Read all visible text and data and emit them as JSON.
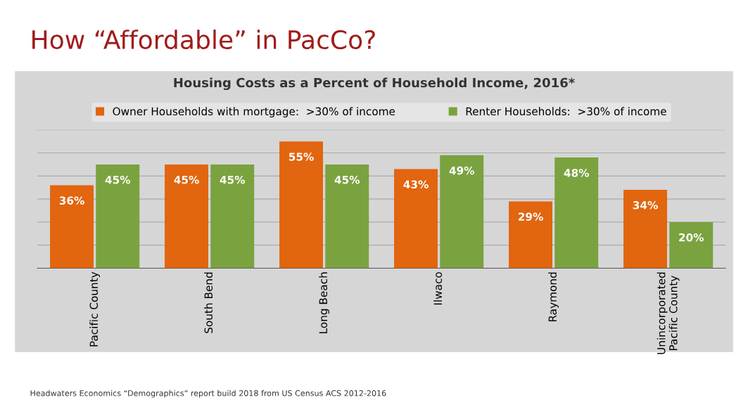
{
  "chart_data": {
    "type": "bar",
    "title": "How “Affordable” in PacCo?",
    "subtitle": "Housing Costs as a Percent of Household Income, 2016*",
    "categories": [
      "Pacific County",
      "South Bend",
      "Long Beach",
      "Ilwaco",
      "Raymond",
      "Unincorporated\nPacific County"
    ],
    "series": [
      {
        "name": "Owner Households with mortgage:  >30% of income",
        "color": "#e2650f",
        "values": [
          36,
          45,
          55,
          43,
          29,
          34
        ],
        "value_labels": [
          "36%",
          "45%",
          "55%",
          "43%",
          "29%",
          "34%"
        ]
      },
      {
        "name": "Renter Households:  >30% of income",
        "color": "#7aa23f",
        "values": [
          45,
          45,
          45,
          49,
          48,
          20
        ],
        "value_labels": [
          "45%",
          "45%",
          "45%",
          "49%",
          "48%",
          "20%"
        ]
      }
    ],
    "ylim": [
      0,
      60
    ],
    "yticks": [
      {
        "value": 0,
        "label": null
      },
      {
        "value": 10,
        "label": null
      },
      {
        "value": 20,
        "label": null
      },
      {
        "value": 30,
        "label": null
      },
      {
        "value": 40,
        "label": null
      },
      {
        "value": 50,
        "label": null
      },
      {
        "value": 60,
        "label": null
      }
    ],
    "tick_labels": "x",
    "grid": "y",
    "legend": "top",
    "annotations": [
      "Headwaters Economics “Demographics” report build 2018 from US Census ACS 2012-2016"
    ]
  }
}
